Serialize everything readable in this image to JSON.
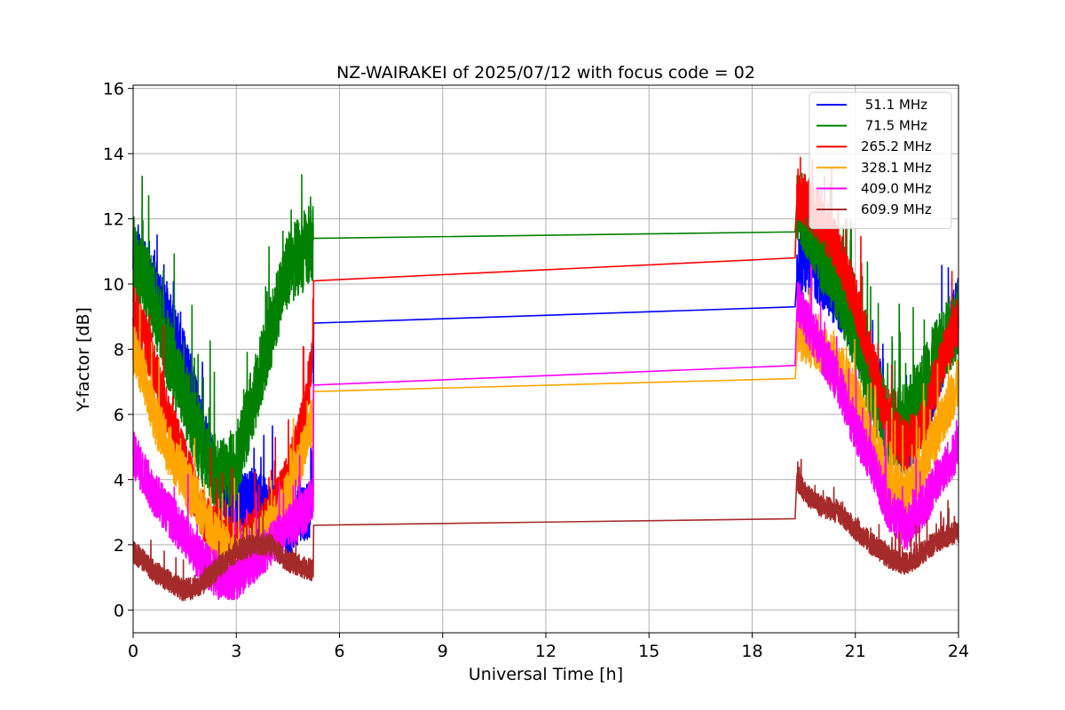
{
  "chart_data": {
    "type": "line",
    "title": "NZ-WAIRAKEI of 2025/07/12 with focus code = 02",
    "xlabel": "Universal Time [h]",
    "ylabel": "Y-factor [dB]",
    "xlim": [
      0,
      24
    ],
    "ylim": [
      -0.7,
      16.1
    ],
    "xticks": [
      0,
      3,
      6,
      9,
      12,
      15,
      18,
      21,
      24
    ],
    "yticks": [
      0,
      2,
      4,
      6,
      8,
      10,
      12,
      14,
      16
    ],
    "grid": true,
    "legend_position": "top-right",
    "series": [
      {
        "name": " 51.1 MHz",
        "color": "#0000ff",
        "noise": 0.9,
        "x": [
          0,
          0.3,
          0.6,
          1.0,
          1.5,
          2.0,
          2.5,
          3.0,
          3.5,
          4.0,
          4.5,
          5.0,
          5.24,
          5.25,
          19.25,
          19.3,
          19.6,
          20.0,
          20.5,
          21.0,
          21.5,
          22.0,
          22.5,
          23.0,
          23.5,
          24.0
        ],
        "y": [
          10.8,
          10.5,
          10.0,
          9.0,
          7.8,
          5.5,
          3.8,
          3.2,
          3.5,
          3.0,
          2.5,
          3.0,
          3.0,
          8.8,
          9.3,
          10.5,
          10.6,
          10.2,
          9.5,
          8.5,
          7.0,
          5.2,
          5.0,
          6.0,
          7.5,
          9.5
        ]
      },
      {
        "name": " 71.5 MHz",
        "color": "#008000",
        "noise": 1.2,
        "x": [
          0,
          0.3,
          0.6,
          1.0,
          1.5,
          2.0,
          2.5,
          3.0,
          3.5,
          4.0,
          4.5,
          5.0,
          5.24,
          5.25,
          19.25,
          19.3,
          19.6,
          20.0,
          20.5,
          21.0,
          21.5,
          22.0,
          22.5,
          23.0,
          23.5,
          24.0
        ],
        "y": [
          10.5,
          10.3,
          9.5,
          8.0,
          6.5,
          5.0,
          4.0,
          4.5,
          6.5,
          8.5,
          10.5,
          11.0,
          11.2,
          11.4,
          11.6,
          12.5,
          12.0,
          11.0,
          10.0,
          8.5,
          6.8,
          5.5,
          5.8,
          7.0,
          8.0,
          9.0
        ]
      },
      {
        "name": "265.2 MHz",
        "color": "#ff0000",
        "noise": 0.8,
        "x": [
          0,
          0.3,
          0.6,
          1.0,
          1.5,
          2.0,
          2.5,
          3.0,
          3.5,
          4.0,
          4.5,
          5.0,
          5.24,
          5.25,
          19.25,
          19.3,
          19.6,
          20.0,
          20.5,
          21.0,
          21.5,
          22.0,
          22.5,
          23.0,
          23.5,
          24.0
        ],
        "y": [
          9.2,
          8.5,
          7.5,
          6.0,
          4.5,
          3.0,
          2.2,
          2.0,
          2.3,
          2.8,
          4.0,
          6.0,
          8.0,
          10.1,
          10.8,
          12.8,
          12.5,
          12.0,
          11.0,
          9.5,
          7.5,
          5.5,
          5.0,
          5.8,
          7.5,
          9.0
        ]
      },
      {
        "name": "328.1 MHz",
        "color": "#ffa500",
        "noise": 0.8,
        "x": [
          0,
          0.3,
          0.6,
          1.0,
          1.5,
          2.0,
          2.5,
          3.0,
          3.5,
          4.0,
          4.5,
          5.0,
          5.24,
          5.25,
          19.25,
          19.3,
          19.6,
          20.0,
          20.5,
          21.0,
          21.5,
          22.0,
          22.5,
          23.0,
          23.5,
          24.0
        ],
        "y": [
          8.0,
          7.2,
          6.0,
          5.0,
          4.0,
          3.0,
          2.0,
          1.5,
          2.0,
          2.5,
          3.5,
          5.0,
          6.0,
          6.7,
          7.1,
          8.5,
          8.3,
          8.0,
          7.5,
          6.5,
          5.0,
          4.0,
          3.5,
          4.5,
          5.8,
          7.0
        ]
      },
      {
        "name": "409.0 MHz",
        "color": "#ff00ff",
        "noise": 0.7,
        "x": [
          0,
          0.3,
          0.6,
          1.0,
          1.5,
          2.0,
          2.5,
          3.0,
          3.5,
          4.0,
          4.5,
          5.0,
          5.24,
          5.25,
          19.25,
          19.3,
          19.6,
          20.0,
          20.5,
          21.0,
          21.5,
          22.0,
          22.5,
          23.0,
          23.5,
          24.0
        ],
        "y": [
          4.8,
          4.2,
          3.6,
          3.0,
          2.3,
          1.5,
          1.0,
          1.0,
          1.5,
          2.0,
          2.5,
          3.0,
          3.5,
          6.9,
          7.5,
          9.5,
          8.8,
          8.0,
          7.0,
          5.5,
          4.5,
          3.0,
          2.5,
          3.2,
          4.2,
          5.0
        ]
      },
      {
        "name": "609.9 MHz",
        "color": "#a52a2a",
        "noise": 0.35,
        "x": [
          0,
          0.3,
          0.6,
          1.0,
          1.5,
          2.0,
          2.5,
          3.0,
          3.5,
          4.0,
          4.5,
          5.0,
          5.24,
          5.25,
          19.25,
          19.3,
          19.6,
          20.0,
          20.5,
          21.0,
          21.5,
          22.0,
          22.5,
          23.0,
          23.5,
          24.0
        ],
        "y": [
          1.8,
          1.5,
          1.2,
          0.9,
          0.6,
          0.8,
          1.3,
          1.8,
          2.0,
          2.0,
          1.5,
          1.3,
          1.2,
          2.6,
          2.8,
          4.0,
          3.5,
          3.2,
          3.0,
          2.5,
          2.0,
          1.6,
          1.4,
          1.8,
          2.2,
          2.4
        ]
      }
    ]
  }
}
